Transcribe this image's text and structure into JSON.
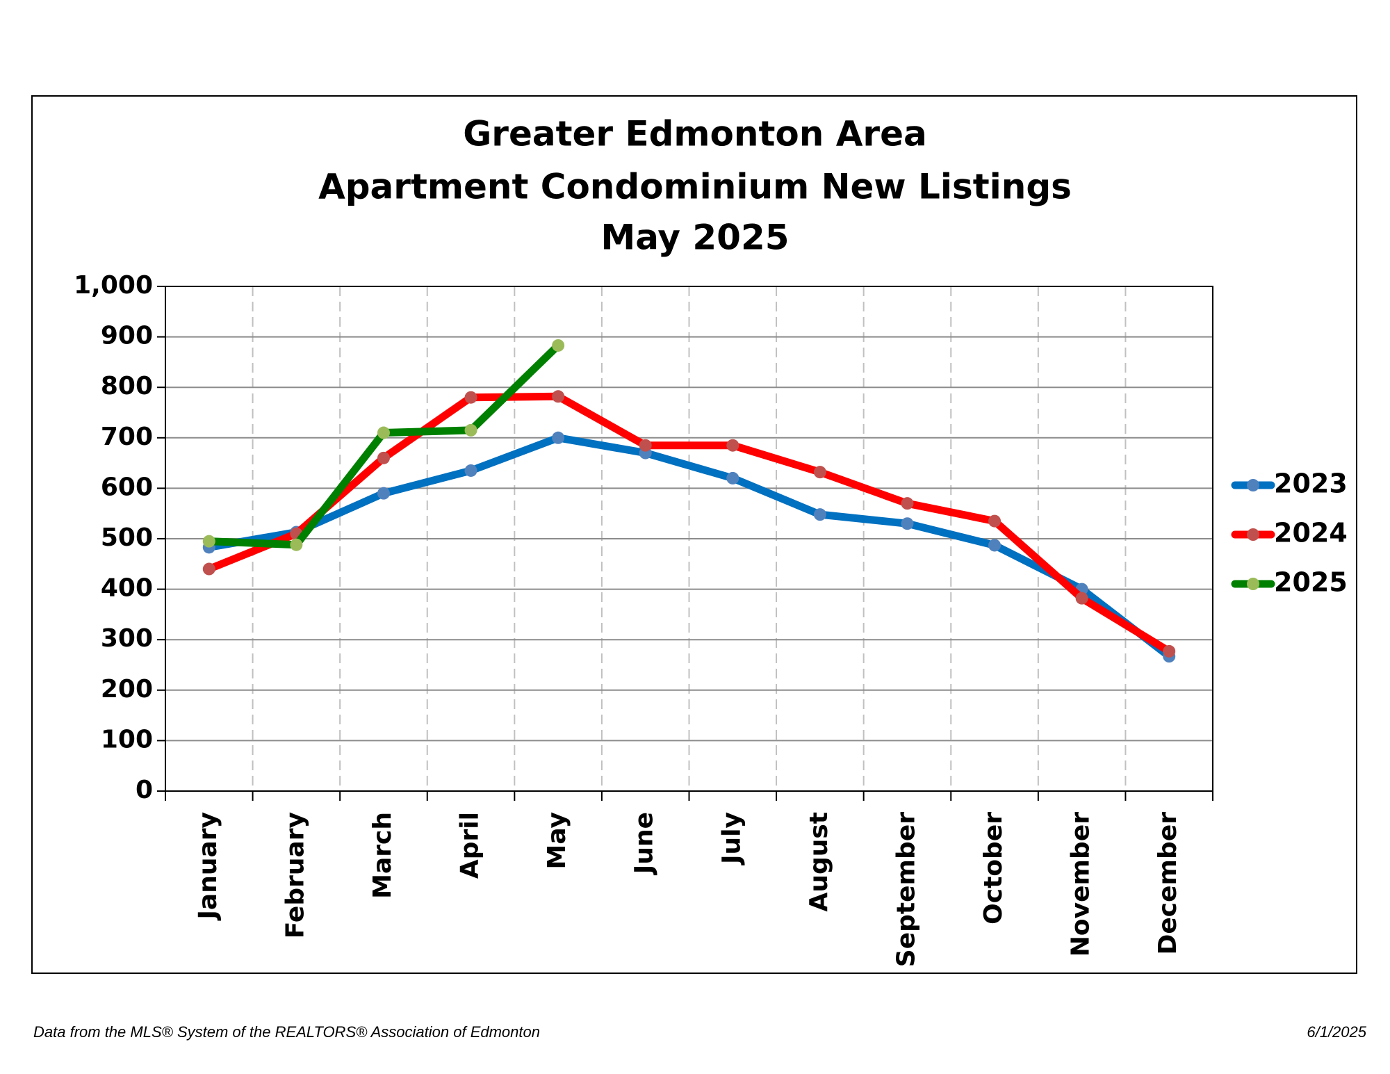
{
  "chart_data": {
    "type": "line",
    "title": "Greater Edmonton Area",
    "subtitle": "Apartment Condominium New Listings",
    "period": "May 2025",
    "categories": [
      "January",
      "February",
      "March",
      "April",
      "May",
      "June",
      "July",
      "August",
      "September",
      "October",
      "November",
      "December"
    ],
    "series": [
      {
        "name": "2023",
        "color": "#0070c0",
        "marker_color": "#4f81bd",
        "values": [
          483,
          513,
          590,
          635,
          700,
          670,
          620,
          548,
          530,
          487,
          400,
          267
        ]
      },
      {
        "name": "2024",
        "color": "#ff0000",
        "marker_color": "#c0504d",
        "values": [
          440,
          510,
          660,
          780,
          782,
          685,
          685,
          632,
          570,
          535,
          382,
          277
        ]
      },
      {
        "name": "2025",
        "color": "#008000",
        "marker_color": "#9bbb59",
        "values": [
          495,
          488,
          710,
          715,
          883,
          null,
          null,
          null,
          null,
          null,
          null,
          null
        ]
      }
    ],
    "ylim": [
      0,
      1000
    ],
    "yticks": [
      0,
      100,
      200,
      300,
      400,
      500,
      600,
      700,
      800,
      900,
      {
        "value": 1000,
        "label": "1,000"
      }
    ],
    "grid": true,
    "legend": "right"
  },
  "footer": {
    "source": "Data from the MLS® System of the REALTORS® Association of Edmonton",
    "date": "6/1/2025"
  }
}
